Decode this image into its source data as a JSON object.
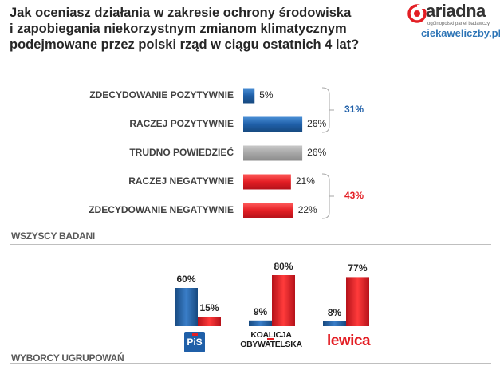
{
  "question": {
    "line1": "Jak oceniasz działania w zakresie ochrony środowiska",
    "line2": "i zapobiegania niekorzystnym zmianom klimatycznym",
    "line3": "podejmowane przez polski rząd w ciągu ostatnich 4 lat?"
  },
  "brand": {
    "name": "ariadna",
    "tagline": "ogólnopolski panel badawczy",
    "site": "ciekaweliczby.pl"
  },
  "colors": {
    "positive": "#1f5fa8",
    "neutral": "#a6a6a6",
    "negative": "#e31e24"
  },
  "chart_data": [
    {
      "type": "bar",
      "orientation": "horizontal",
      "section_label": "WSZYSCY BADANI",
      "categories": [
        "ZDECYDOWANIE POZYTYWNIE",
        "RACZEJ POZYTYWNIE",
        "TRUDNO POWIEDZIEĆ",
        "RACZEJ NEGATYWNIE",
        "ZDECYDOWANIE NEGATYWNIE"
      ],
      "values": [
        5,
        26,
        26,
        21,
        22
      ],
      "value_labels": [
        "5%",
        "26%",
        "26%",
        "21%",
        "22%"
      ],
      "groups": [
        {
          "label": "31%",
          "members": [
            0,
            1
          ],
          "color": "#1f5fa8"
        },
        {
          "label": "43%",
          "members": [
            3,
            4
          ],
          "color": "#e31e24"
        }
      ],
      "unit": "%"
    },
    {
      "type": "bar",
      "orientation": "vertical",
      "section_label": "WYBORCY UGRUPOWAŃ",
      "categories": [
        "PiS",
        "KOALICJA OBYWATELSKA",
        "Lewica"
      ],
      "series": [
        {
          "values": [
            60,
            9,
            8
          ],
          "value_labels": [
            "60%",
            "9%",
            "8%"
          ],
          "color": "#1f5fa8"
        },
        {
          "values": [
            15,
            80,
            77
          ],
          "value_labels": [
            "15%",
            "80%",
            "77%"
          ],
          "color": "#e31e24"
        }
      ],
      "ylim": [
        0,
        80
      ],
      "unit": "%"
    }
  ],
  "party_logos": {
    "pis": "PiS",
    "ko_line1": "KOALICJA",
    "ko_line2": "OBYWATELSKA",
    "lewica": "lewica"
  }
}
